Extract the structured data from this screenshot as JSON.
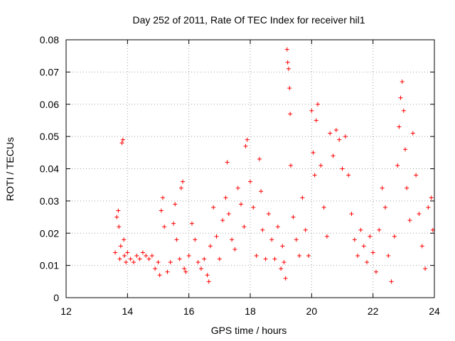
{
  "chart_data": {
    "type": "scatter",
    "title": "Day 252 of 2011, Rate Of TEC Index for receiver hil1",
    "xlabel": "GPS time / hours",
    "ylabel": "ROTI / TECUs",
    "xlim": [
      12,
      24
    ],
    "ylim": [
      0,
      0.08
    ],
    "xticks": [
      12,
      14,
      16,
      18,
      20,
      22,
      24
    ],
    "xtick_labels": [
      "12",
      "14",
      "16",
      "18",
      "20",
      "22",
      "24"
    ],
    "yticks": [
      0,
      0.01,
      0.02,
      0.03,
      0.04,
      0.05,
      0.06,
      0.07,
      0.08
    ],
    "ytick_labels": [
      "0",
      "0.01",
      "0.02",
      "0.03",
      "0.04",
      "0.05",
      "0.06",
      "0.07",
      "0.08"
    ],
    "grid": true,
    "marker": "+",
    "color": "#ff0000",
    "series": [
      {
        "name": "hil1",
        "points": [
          [
            13.6,
            0.014
          ],
          [
            13.65,
            0.025
          ],
          [
            13.7,
            0.027
          ],
          [
            13.72,
            0.022
          ],
          [
            13.75,
            0.012
          ],
          [
            13.78,
            0.016
          ],
          [
            13.82,
            0.048
          ],
          [
            13.85,
            0.049
          ],
          [
            13.88,
            0.018
          ],
          [
            13.9,
            0.013
          ],
          [
            13.95,
            0.011
          ],
          [
            14.0,
            0.014
          ],
          [
            14.1,
            0.012
          ],
          [
            14.2,
            0.011
          ],
          [
            14.3,
            0.013
          ],
          [
            14.4,
            0.012
          ],
          [
            14.5,
            0.014
          ],
          [
            14.6,
            0.013
          ],
          [
            14.7,
            0.012
          ],
          [
            14.8,
            0.013
          ],
          [
            14.9,
            0.009
          ],
          [
            15.0,
            0.011
          ],
          [
            15.05,
            0.007
          ],
          [
            15.1,
            0.027
          ],
          [
            15.15,
            0.031
          ],
          [
            15.2,
            0.022
          ],
          [
            15.3,
            0.008
          ],
          [
            15.4,
            0.011
          ],
          [
            15.5,
            0.023
          ],
          [
            15.55,
            0.029
          ],
          [
            15.6,
            0.018
          ],
          [
            15.7,
            0.012
          ],
          [
            15.75,
            0.034
          ],
          [
            15.8,
            0.036
          ],
          [
            15.85,
            0.009
          ],
          [
            15.9,
            0.008
          ],
          [
            16.0,
            0.013
          ],
          [
            16.1,
            0.023
          ],
          [
            16.2,
            0.018
          ],
          [
            16.3,
            0.011
          ],
          [
            16.4,
            0.009
          ],
          [
            16.5,
            0.012
          ],
          [
            16.6,
            0.007
          ],
          [
            16.65,
            0.005
          ],
          [
            16.7,
            0.016
          ],
          [
            16.8,
            0.028
          ],
          [
            16.9,
            0.019
          ],
          [
            17.0,
            0.012
          ],
          [
            17.1,
            0.024
          ],
          [
            17.2,
            0.031
          ],
          [
            17.25,
            0.042
          ],
          [
            17.3,
            0.026
          ],
          [
            17.4,
            0.018
          ],
          [
            17.5,
            0.015
          ],
          [
            17.6,
            0.034
          ],
          [
            17.7,
            0.029
          ],
          [
            17.8,
            0.022
          ],
          [
            17.85,
            0.047
          ],
          [
            17.9,
            0.049
          ],
          [
            18.0,
            0.036
          ],
          [
            18.1,
            0.028
          ],
          [
            18.2,
            0.013
          ],
          [
            18.3,
            0.043
          ],
          [
            18.35,
            0.033
          ],
          [
            18.4,
            0.021
          ],
          [
            18.5,
            0.012
          ],
          [
            18.6,
            0.026
          ],
          [
            18.7,
            0.018
          ],
          [
            18.8,
            0.012
          ],
          [
            18.9,
            0.022
          ],
          [
            19.0,
            0.009
          ],
          [
            19.05,
            0.016
          ],
          [
            19.1,
            0.011
          ],
          [
            19.15,
            0.006
          ],
          [
            19.2,
            0.077
          ],
          [
            19.22,
            0.073
          ],
          [
            19.25,
            0.071
          ],
          [
            19.28,
            0.065
          ],
          [
            19.3,
            0.057
          ],
          [
            19.32,
            0.041
          ],
          [
            19.4,
            0.025
          ],
          [
            19.5,
            0.018
          ],
          [
            19.6,
            0.013
          ],
          [
            19.7,
            0.031
          ],
          [
            19.8,
            0.021
          ],
          [
            19.9,
            0.013
          ],
          [
            20.0,
            0.058
          ],
          [
            20.05,
            0.045
          ],
          [
            20.1,
            0.038
          ],
          [
            20.15,
            0.055
          ],
          [
            20.2,
            0.06
          ],
          [
            20.3,
            0.041
          ],
          [
            20.4,
            0.028
          ],
          [
            20.5,
            0.019
          ],
          [
            20.6,
            0.051
          ],
          [
            20.7,
            0.044
          ],
          [
            20.8,
            0.052
          ],
          [
            20.9,
            0.049
          ],
          [
            21.0,
            0.04
          ],
          [
            21.1,
            0.05
          ],
          [
            21.2,
            0.038
          ],
          [
            21.3,
            0.026
          ],
          [
            21.4,
            0.018
          ],
          [
            21.5,
            0.013
          ],
          [
            21.6,
            0.021
          ],
          [
            21.7,
            0.016
          ],
          [
            21.8,
            0.011
          ],
          [
            21.9,
            0.019
          ],
          [
            22.0,
            0.014
          ],
          [
            22.1,
            0.008
          ],
          [
            22.2,
            0.021
          ],
          [
            22.3,
            0.034
          ],
          [
            22.4,
            0.028
          ],
          [
            22.5,
            0.013
          ],
          [
            22.6,
            0.005
          ],
          [
            22.7,
            0.019
          ],
          [
            22.8,
            0.041
          ],
          [
            22.85,
            0.053
          ],
          [
            22.9,
            0.062
          ],
          [
            22.95,
            0.067
          ],
          [
            23.0,
            0.058
          ],
          [
            23.05,
            0.046
          ],
          [
            23.1,
            0.034
          ],
          [
            23.2,
            0.024
          ],
          [
            23.3,
            0.051
          ],
          [
            23.4,
            0.038
          ],
          [
            23.5,
            0.026
          ],
          [
            23.6,
            0.016
          ],
          [
            23.7,
            0.009
          ],
          [
            23.8,
            0.028
          ],
          [
            23.9,
            0.031
          ],
          [
            23.95,
            0.021
          ]
        ]
      }
    ]
  }
}
